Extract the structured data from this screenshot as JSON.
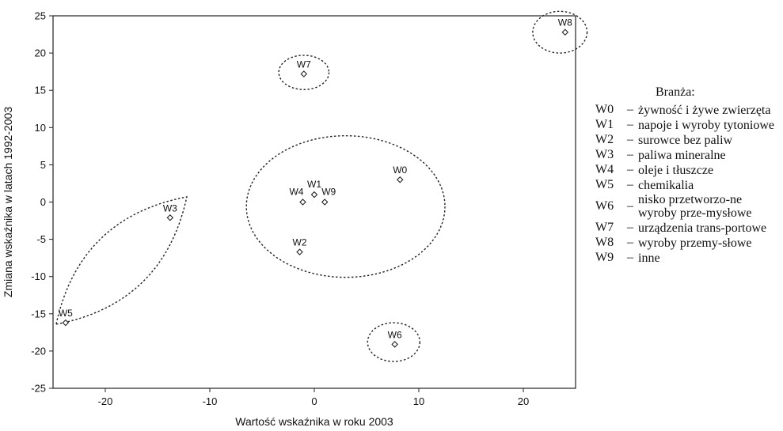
{
  "chart_data": {
    "type": "scatter",
    "title": "",
    "xlabel": "Wartość wskaźnika w roku 2003",
    "ylabel": "Zmiana wskaźnika w latach 1992-2003",
    "xlim": [
      -25,
      25
    ],
    "ylim": [
      -25,
      25
    ],
    "xticks": [
      -20,
      -10,
      0,
      10,
      20
    ],
    "yticks": [
      25,
      20,
      15,
      10,
      5,
      0,
      -5,
      -10,
      -15,
      -20,
      -25
    ],
    "grid": false,
    "points": [
      {
        "label": "W0",
        "x": 8.2,
        "y": 3.0
      },
      {
        "label": "W1",
        "x": 0.0,
        "y": 1.0
      },
      {
        "label": "W2",
        "x": -1.4,
        "y": -6.7
      },
      {
        "label": "W3",
        "x": -13.8,
        "y": -2.1
      },
      {
        "label": "W4",
        "x": -1.1,
        "y": 0.0
      },
      {
        "label": "W5",
        "x": -23.8,
        "y": -16.2
      },
      {
        "label": "W6",
        "x": 7.7,
        "y": -19.1
      },
      {
        "label": "W7",
        "x": -1.0,
        "y": 17.2
      },
      {
        "label": "W8",
        "x": 24.0,
        "y": 22.8
      },
      {
        "label": "W9",
        "x": 1.0,
        "y": 0.0
      }
    ],
    "clusters": [
      {
        "shape": "ellipse",
        "cx": 3.0,
        "cy": -0.6,
        "rx": 9.5,
        "ry": 9.5,
        "angle": 0
      },
      {
        "shape": "ellipse",
        "cx": -1.0,
        "cy": 17.4,
        "rx": 2.4,
        "ry": 2.3,
        "angle": 0
      },
      {
        "shape": "ellipse",
        "cx": 23.5,
        "cy": 22.8,
        "rx": 2.6,
        "ry": 2.8,
        "angle": 0
      },
      {
        "shape": "ellipse",
        "cx": 7.6,
        "cy": -18.8,
        "rx": 2.5,
        "ry": 2.6,
        "angle": 0
      },
      {
        "shape": "lens",
        "p1": [
          -24.7,
          -16.4
        ],
        "p2": [
          -12.2,
          0.7
        ],
        "bulge": 0.33
      }
    ]
  },
  "legend": {
    "title": "Branża:",
    "items": [
      {
        "code": "W0",
        "dash": "–",
        "desc": "żywność i żywe zwierzęta"
      },
      {
        "code": "W1",
        "dash": "–",
        "desc": "napoje i wyroby tytoniowe"
      },
      {
        "code": "W2",
        "dash": "–",
        "desc": "surowce bez paliw"
      },
      {
        "code": "W3",
        "dash": "–",
        "desc": "paliwa mineralne"
      },
      {
        "code": "W4",
        "dash": "–",
        "desc": "oleje i tłuszcze"
      },
      {
        "code": "W5",
        "dash": "–",
        "desc": "chemikalia"
      },
      {
        "code": "W6",
        "dash": "–",
        "desc": "nisko przetworzo-ne wyroby prze-mysłowe"
      },
      {
        "code": "W7",
        "dash": "–",
        "desc": "urządzenia trans-portowe"
      },
      {
        "code": "W8",
        "dash": "–",
        "desc": "wyroby przemy-słowe"
      },
      {
        "code": "W9",
        "dash": "–",
        "desc": "inne"
      }
    ]
  }
}
